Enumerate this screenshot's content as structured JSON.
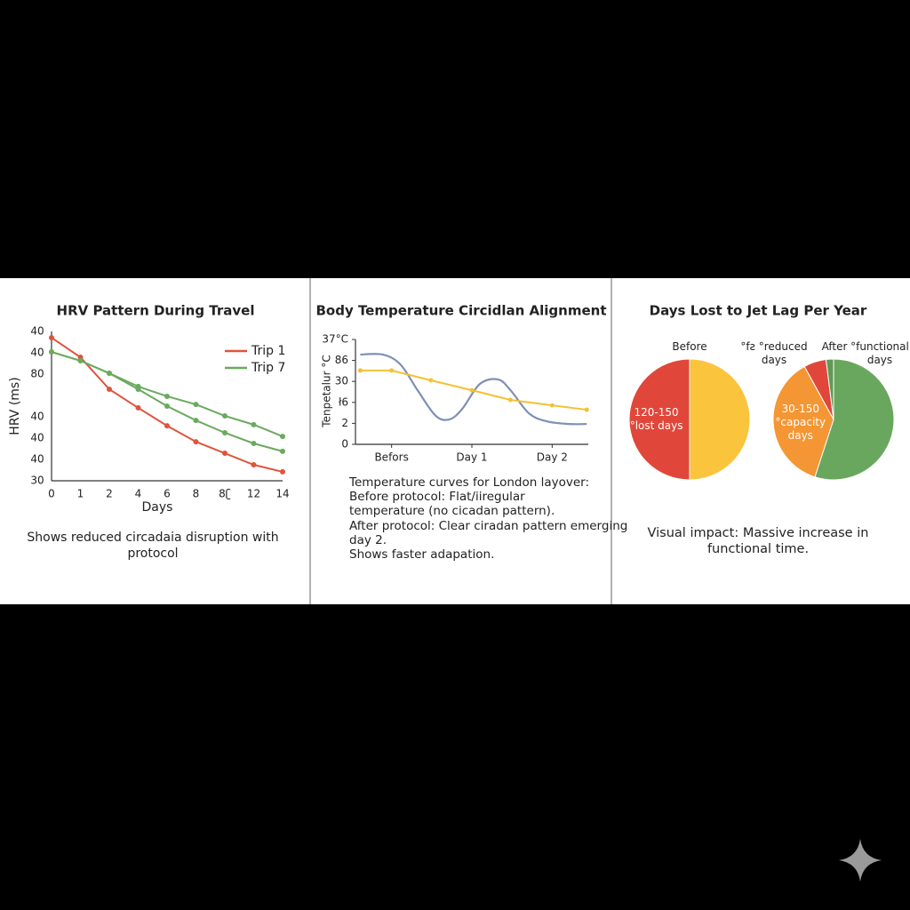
{
  "chart_data": [
    {
      "type": "line",
      "title": "HRV Pattern During Travel",
      "y_label": "HRV (ms)",
      "x_label": "Days",
      "categories": [
        "0",
        "1",
        "2",
        "4",
        "6",
        "8",
        "8ʗ",
        "12",
        "14"
      ],
      "ylim": [
        30,
        100
      ],
      "yticks": [
        30,
        40,
        {
          "value": 50,
          "label": "40"
        },
        {
          "value": 60,
          "label": "40"
        },
        80,
        {
          "value": 90,
          "label": "40"
        },
        {
          "value": 100,
          "label": "40"
        }
      ],
      "series": [
        {
          "name": "Trip 1",
          "color": "#e0533c",
          "markers": true,
          "values": [
            97.1,
            87.9,
            72.9,
            64.2,
            55.8,
            48.3,
            42.9,
            37.5,
            34.2
          ]
        },
        {
          "name": "Trip 7",
          "color": "#6aaa5e",
          "markers": true,
          "values": [
            90.4,
            86.3,
            80.4,
            74.2,
            69.6,
            65.8,
            60.4,
            56.3,
            50.8
          ]
        },
        {
          "color": "#6aaa5e",
          "markers": true,
          "values": [
            90.4,
            86.3,
            80.4,
            72.9,
            65.0,
            58.3,
            52.5,
            47.5,
            43.8
          ]
        }
      ],
      "legend": "upper right",
      "caption": "Shows reduced circadaia disruption with protocol"
    },
    {
      "type": "line",
      "title": "Body Temperature Circidlan Alignment",
      "y_label": "Tenpetalur °C",
      "xlim": [
        -0.45,
        2.45
      ],
      "xticks": [
        {
          "value": 0,
          "label": "Befors"
        },
        {
          "value": 1,
          "label": "Day 1"
        },
        {
          "value": 2,
          "label": "Day 2"
        }
      ],
      "ylim": [
        0,
        5
      ],
      "yticks": [
        0,
        {
          "value": 1,
          "label": "2"
        },
        {
          "value": 2,
          "label": "ł6"
        },
        {
          "value": 3,
          "label": "30"
        },
        {
          "value": 4,
          "label": "86"
        },
        {
          "value": 5,
          "label": "37°C"
        }
      ],
      "series": [
        {
          "color": "#7f8fb5",
          "smooth": true,
          "x": [
            -0.39,
            -0.11,
            0.11,
            0.33,
            0.55,
            0.72,
            0.88,
            1.1,
            1.33,
            1.49,
            1.71,
            1.93,
            2.21,
            2.43
          ],
          "values": [
            4.28,
            4.28,
            3.81,
            2.54,
            1.36,
            1.19,
            1.69,
            2.88,
            3.09,
            2.54,
            1.48,
            1.1,
            0.97,
            0.97
          ]
        },
        {
          "color": "#f2c233",
          "markers": true,
          "x": [
            -0.39,
            0,
            0.49,
            1,
            1.48,
            2,
            2.43
          ],
          "values": [
            3.52,
            3.52,
            3.05,
            2.58,
            2.12,
            1.86,
            1.65
          ]
        }
      ],
      "caption": [
        "Temperature curves for London layover:",
        "Before protocol: Flat/iiregular",
        "temperature (no cicadan pattern).",
        "After protocol: Clear ciradan pattern emerging day 2.",
        "Shows faster adapation."
      ]
    },
    {
      "type": "pie",
      "title": "Days Lost to Jet Lag Per Year",
      "pies": [
        {
          "headers": [
            "Before"
          ],
          "values": [
            50,
            50
          ],
          "colors": [
            "#fbc43d",
            "#e0473a"
          ],
          "slice_labels": [
            null,
            "120-150\n°lost days"
          ]
        },
        {
          "headers": [
            "°fƨ °reduced\ndays",
            "After",
            "°functional\ndays"
          ],
          "values": [
            55,
            37,
            6,
            2
          ],
          "colors": [
            "#6aa75e",
            "#f59634",
            "#e0473a",
            "#5f9a55"
          ],
          "slice_labels": [
            null,
            "30-150\n°capacity\ndays",
            null,
            null
          ]
        }
      ],
      "caption": "Visual impact: Massive increase in functional time."
    }
  ]
}
